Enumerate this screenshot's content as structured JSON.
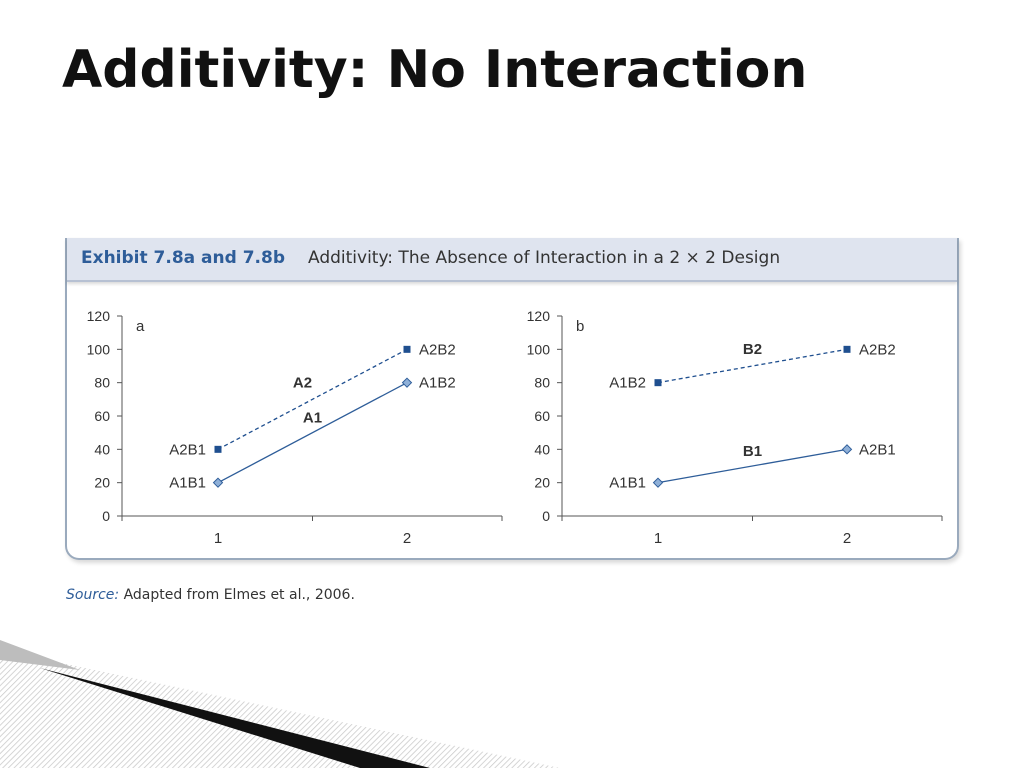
{
  "slide": {
    "title": "Additivity: No Interaction"
  },
  "exhibit": {
    "label": "Exhibit 7.8a and 7.8b",
    "caption": "Additivity: The Absence of Interaction in a 2 × 2 Design"
  },
  "source": {
    "label": "Source:",
    "text": "Adapted from Elmes et al., 2006."
  },
  "chart_data": [
    {
      "type": "line",
      "panel_label": "a",
      "x": [
        1,
        2
      ],
      "xticks": [
        "1",
        "2"
      ],
      "yticks": [
        0,
        20,
        40,
        60,
        80,
        100,
        120
      ],
      "ylim": [
        0,
        120
      ],
      "grid": false,
      "series": [
        {
          "name": "A1",
          "style": "solid",
          "marker": "diamond",
          "color": "#2e5d99",
          "values": [
            20,
            80
          ],
          "point_labels": [
            "A1B1",
            "A1B2"
          ]
        },
        {
          "name": "A2",
          "style": "dashed",
          "marker": "square",
          "color": "#1f4f8f",
          "values": [
            40,
            100
          ],
          "point_labels": [
            "A2B1",
            "A2B2"
          ]
        }
      ]
    },
    {
      "type": "line",
      "panel_label": "b",
      "x": [
        1,
        2
      ],
      "xticks": [
        "1",
        "2"
      ],
      "yticks": [
        0,
        20,
        40,
        60,
        80,
        100,
        120
      ],
      "ylim": [
        0,
        120
      ],
      "grid": false,
      "series": [
        {
          "name": "B1",
          "style": "solid",
          "marker": "diamond",
          "color": "#2e5d99",
          "values": [
            20,
            40
          ],
          "point_labels": [
            "A1B1",
            "A2B1"
          ]
        },
        {
          "name": "B2",
          "style": "dashed",
          "marker": "square",
          "color": "#1f4f8f",
          "values": [
            80,
            100
          ],
          "point_labels": [
            "A1B2",
            "A2B2"
          ]
        }
      ]
    }
  ]
}
